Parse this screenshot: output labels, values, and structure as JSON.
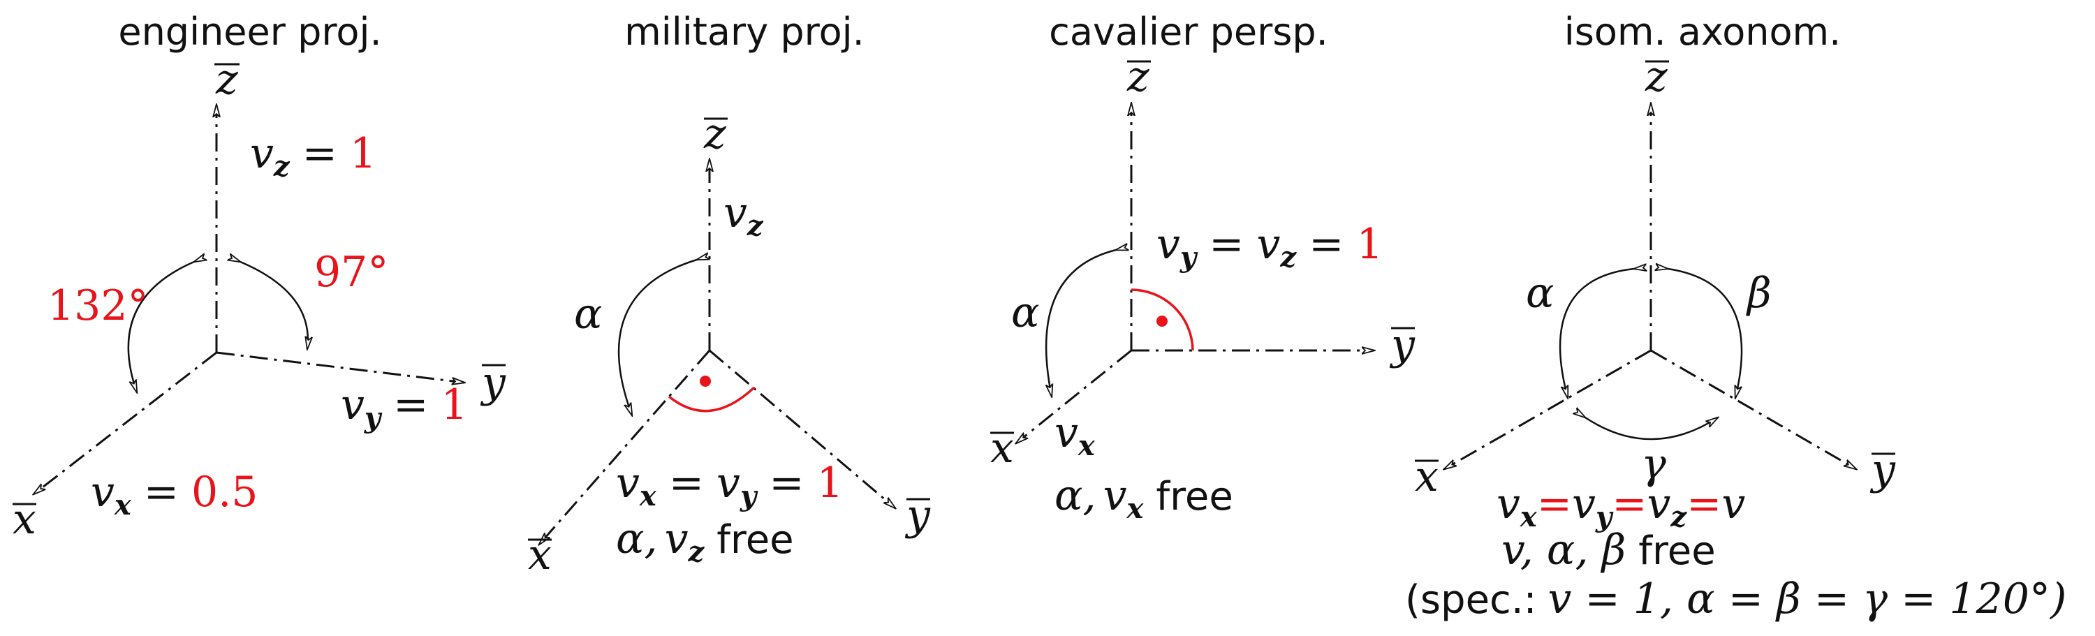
{
  "panels": [
    {
      "title": "engineer proj.",
      "axis_x": "x",
      "axis_y": "y",
      "axis_z": "z",
      "angle_left": "132°",
      "angle_right": "97°",
      "vz_sym": "v",
      "vz_sub": "z",
      "vz_eq": "=",
      "vz_val": "1",
      "vy_sym": "v",
      "vy_sub": "y",
      "vy_eq": "=",
      "vy_val": "1",
      "vx_sym": "v",
      "vx_sub": "x",
      "vx_eq": "=",
      "vx_val": "0.5"
    },
    {
      "title": "military proj.",
      "axis_x": "x",
      "axis_y": "y",
      "axis_z": "z",
      "vz_sym": "v",
      "vz_sub": "z",
      "alpha": "α",
      "eq_v1": "v",
      "eq_s1": "x",
      "eq_eq1": "=",
      "eq_v2": "v",
      "eq_s2": "y",
      "eq_eq2": "=",
      "eq_val": "1",
      "free_alpha": "α,",
      "free_v": "v",
      "free_sub": "z",
      "free_word": "free"
    },
    {
      "title": "cavalier persp.",
      "axis_x": "x",
      "axis_y": "y",
      "axis_z": "z",
      "alpha": "α",
      "vx_sym": "v",
      "vx_sub": "x",
      "eq_v1": "v",
      "eq_s1": "y",
      "eq_eq1": "=",
      "eq_v2": "v",
      "eq_s2": "z",
      "eq_eq2": "=",
      "eq_val": "1",
      "free_alpha": "α,",
      "free_v": "v",
      "free_sub": "x",
      "free_word": "free"
    },
    {
      "title": "isom. axonom.",
      "axis_x": "x",
      "axis_y": "y",
      "axis_z": "z",
      "alpha": "α",
      "beta": "β",
      "gamma": "γ",
      "eq_v1": "v",
      "eq_s1": "x",
      "eq_r1": "=",
      "eq_v2": "v",
      "eq_s2": "y",
      "eq_r2": "=",
      "eq_v3": "v",
      "eq_s3": "z",
      "eq_r3": "=",
      "eq_v": "v",
      "free_line": "v, α, β",
      "free_word": "free",
      "spec_open": "(spec.:",
      "spec_math": "v = 1, α = β = γ = 120°)"
    }
  ],
  "colors": {
    "accent": "#e8141a",
    "ink": "#111111"
  }
}
